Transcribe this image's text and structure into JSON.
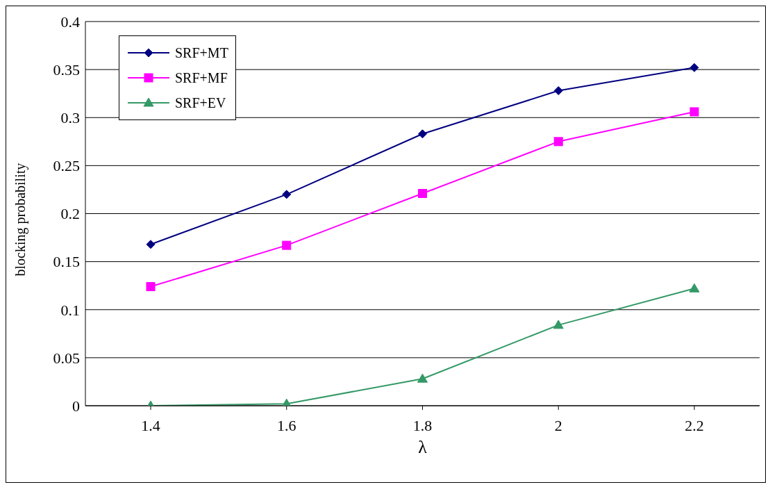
{
  "chart_data": {
    "type": "line",
    "xlabel": "λ",
    "ylabel": "blocking probability",
    "categories": [
      "1.4",
      "1.6",
      "1.8",
      "2",
      "2.2"
    ],
    "series": [
      {
        "name": "SRF+MT",
        "color": "#000080",
        "marker": "diamond",
        "values": [
          0.168,
          0.22,
          0.283,
          0.328,
          0.352
        ]
      },
      {
        "name": "SRF+MF",
        "color": "#ff00ff",
        "marker": "square",
        "values": [
          0.124,
          0.167,
          0.221,
          0.275,
          0.306
        ]
      },
      {
        "name": "SRF+EV",
        "color": "#339966",
        "marker": "triangle",
        "values": [
          0,
          0.002,
          0.028,
          0.084,
          0.122
        ]
      }
    ],
    "ylim": [
      0,
      0.4
    ],
    "yticks": [
      0,
      0.05,
      0.1,
      0.15,
      0.2,
      0.25,
      0.3,
      0.35,
      0.4
    ],
    "grid": "y",
    "legend": "top left"
  }
}
